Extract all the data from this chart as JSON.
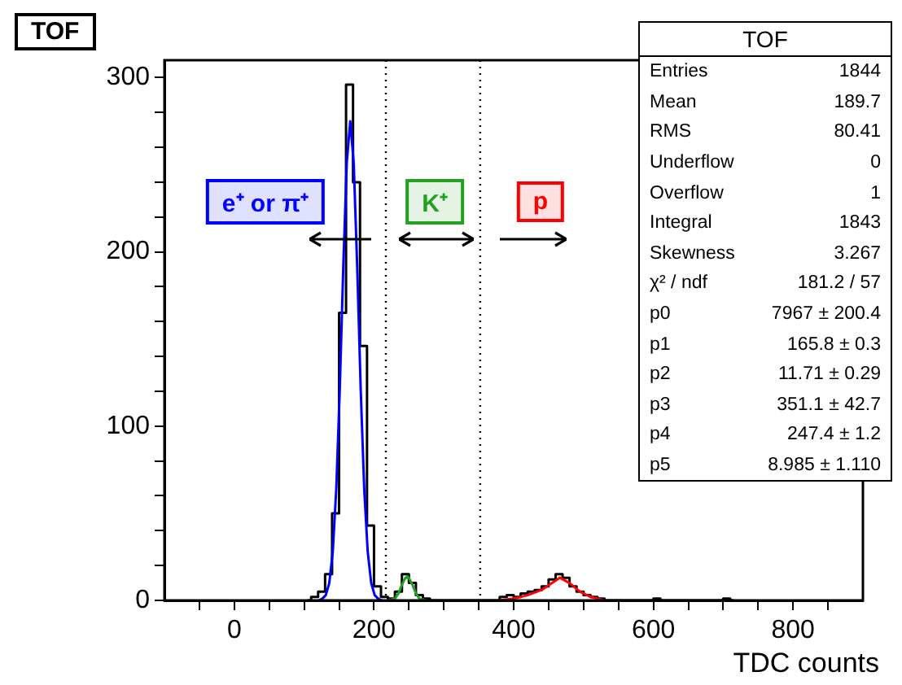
{
  "chart_data": {
    "type": "step",
    "title": "TOF",
    "xlabel": "TDC counts",
    "x": [
      105,
      115,
      125,
      135,
      145,
      155,
      165,
      175,
      185,
      195,
      205,
      215,
      225,
      235,
      245,
      255,
      265,
      275,
      285,
      295,
      305,
      315,
      325,
      335,
      345,
      355,
      365,
      375,
      385,
      395,
      405,
      415,
      425,
      435,
      445,
      455,
      465,
      475,
      485,
      495,
      505,
      515,
      525,
      535,
      545,
      555,
      565,
      575,
      585,
      595,
      605,
      615,
      625,
      635,
      645,
      655,
      665,
      675,
      685,
      695,
      705,
      715
    ],
    "values": [
      0,
      2,
      5,
      15,
      50,
      165,
      296,
      240,
      146,
      43,
      8,
      2,
      1,
      5,
      15,
      10,
      3,
      1,
      0,
      0,
      0,
      0,
      0,
      0,
      0,
      0,
      0,
      0,
      2,
      3,
      2,
      4,
      5,
      6,
      8,
      12,
      15,
      13,
      8,
      5,
      3,
      2,
      1,
      0,
      0,
      0,
      0,
      0,
      0,
      0,
      1,
      0,
      0,
      0,
      0,
      0,
      0,
      0,
      0,
      0,
      1,
      0
    ],
    "color": "#000000",
    "series": [
      {
        "type": "line",
        "color": "#0000ff",
        "x": [
          121,
          126,
          131,
          136,
          141,
          146,
          151,
          156,
          161,
          166,
          171,
          176,
          181,
          186,
          191,
          196,
          201,
          206,
          211
        ],
        "values": [
          0,
          1,
          3,
          10,
          28,
          64,
          121,
          191,
          251,
          275,
          251,
          191,
          121,
          64,
          28,
          10,
          3,
          1,
          0
        ]
      },
      {
        "type": "line",
        "color": "#22a022",
        "x": [
          220,
          230,
          235,
          240,
          245,
          247,
          250,
          255,
          260,
          265,
          275
        ],
        "values": [
          0,
          1,
          4,
          9,
          13,
          14,
          13,
          9,
          4,
          1,
          0
        ]
      },
      {
        "type": "line",
        "color": "#ff0000",
        "x": [
          380,
          400,
          420,
          440,
          455,
          466,
          480,
          495,
          510,
          530
        ],
        "values": [
          0,
          1,
          3,
          6,
          10,
          13,
          10,
          5,
          2,
          0
        ]
      }
    ],
    "xlim": [
      -100,
      900
    ],
    "xticks": [
      {
        "value": -50,
        "label": null
      },
      0,
      {
        "value": 50,
        "label": null
      },
      {
        "value": 100,
        "label": null
      },
      {
        "value": 150,
        "label": null
      },
      200,
      {
        "value": 250,
        "label": null
      },
      {
        "value": 300,
        "label": null
      },
      {
        "value": 350,
        "label": null
      },
      400,
      {
        "value": 450,
        "label": null
      },
      {
        "value": 500,
        "label": null
      },
      {
        "value": 550,
        "label": null
      },
      600,
      {
        "value": 650,
        "label": null
      },
      {
        "value": 700,
        "label": null
      },
      {
        "value": 750,
        "label": null
      },
      800,
      {
        "value": 850,
        "label": null
      }
    ],
    "ylim": [
      0,
      310
    ],
    "yticks": [
      0,
      {
        "value": 20,
        "label": null
      },
      {
        "value": 40,
        "label": null
      },
      {
        "value": 60,
        "label": null
      },
      {
        "value": 80,
        "label": null
      },
      100,
      {
        "value": 120,
        "label": null
      },
      {
        "value": 140,
        "label": null
      },
      {
        "value": 160,
        "label": null
      },
      {
        "value": 180,
        "label": null
      },
      200,
      {
        "value": 220,
        "label": null
      },
      {
        "value": 240,
        "label": null
      },
      {
        "value": 260,
        "label": null
      },
      {
        "value": 280,
        "label": null
      },
      300
    ],
    "ref_lines": [
      {
        "axis": "x",
        "value": 217,
        "color": "#000000",
        "line_style": "dotted"
      },
      {
        "axis": "x",
        "value": 352,
        "color": "#000000",
        "line_style": "dotted"
      }
    ],
    "annotations": [
      "e⁺ or π⁺",
      "K⁺",
      "p",
      "TOF",
      "Entries\t1844",
      "Mean\t189.7",
      "RMS\t80.41",
      "Underflow\t0",
      "Overflow\t1",
      "Integral\t1843",
      "Skewness\t3.267",
      "χ² / ndf\t181.2 / 57",
      "p0\t7967 ± 200.4",
      "p1\t165.8 ± 0.3",
      "p2\t11.71 ± 0.29",
      "p3\t351.1 ± 42.7",
      "p4\t247.4 ± 1.2",
      "p5\t8.985 ± 1.110"
    ],
    "grid": false,
    "legend": false,
    "line_style": "solid",
    "marker": "none"
  }
}
